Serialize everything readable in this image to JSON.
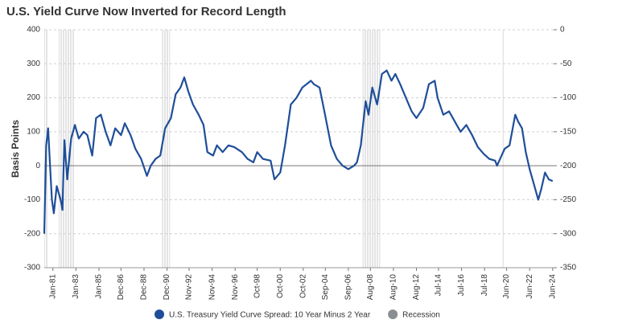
{
  "chart_data": {
    "type": "line",
    "title": "U.S. Yield Curve Now Inverted for Record Length",
    "y_label": "Basis Points",
    "ylim": [
      -300,
      400
    ],
    "yticks": [
      -300,
      -200,
      -100,
      0,
      100,
      200,
      300,
      400
    ],
    "y2lim": [
      -350,
      0
    ],
    "y2ticks": [
      -350,
      -300,
      -250,
      -200,
      -150,
      -100,
      -50,
      0
    ],
    "xlim": [
      "1980-04",
      "2024-07"
    ],
    "xticks": [
      {
        "value": "1981-01",
        "label": "Jan-81"
      },
      {
        "value": "1983-01",
        "label": "Jan-83"
      },
      {
        "value": "1985-01",
        "label": "Jan-85"
      },
      {
        "value": "1986-12",
        "label": "Dec-86"
      },
      {
        "value": "1988-12",
        "label": "Dec-88"
      },
      {
        "value": "1990-12",
        "label": "Dec-90"
      },
      {
        "value": "1992-11",
        "label": "Nov-92"
      },
      {
        "value": "1994-11",
        "label": "Nov-94"
      },
      {
        "value": "1996-11",
        "label": "Nov-96"
      },
      {
        "value": "1998-10",
        "label": "Oct-98"
      },
      {
        "value": "2000-10",
        "label": "Oct-00"
      },
      {
        "value": "2002-10",
        "label": "Oct-02"
      },
      {
        "value": "2004-09",
        "label": "Sep-04"
      },
      {
        "value": "2006-09",
        "label": "Sep-06"
      },
      {
        "value": "2008-08",
        "label": "Aug-08"
      },
      {
        "value": "2010-08",
        "label": "Aug-10"
      },
      {
        "value": "2012-08",
        "label": "Aug-12"
      },
      {
        "value": "2014-07",
        "label": "Jul-14"
      },
      {
        "value": "2016-07",
        "label": "Jul-16"
      },
      {
        "value": "2018-07",
        "label": "Jul-18"
      },
      {
        "value": "2020-06",
        "label": "Jun-20"
      },
      {
        "value": "2022-06",
        "label": "Jun-22"
      },
      {
        "value": "2024-06",
        "label": "Jun-24"
      }
    ],
    "grid": true,
    "x": [
      "1980-04",
      "1980-06",
      "1980-08",
      "1980-10",
      "1980-12",
      "1981-02",
      "1981-05",
      "1981-09",
      "1981-11",
      "1982-01",
      "1982-04",
      "1982-08",
      "1982-12",
      "1983-04",
      "1983-09",
      "1984-01",
      "1984-06",
      "1984-10",
      "1985-03",
      "1985-08",
      "1986-01",
      "1986-06",
      "1986-12",
      "1987-04",
      "1987-10",
      "1988-03",
      "1988-09",
      "1989-03",
      "1989-07",
      "1989-12",
      "1990-05",
      "1990-10",
      "1991-04",
      "1991-09",
      "1992-02",
      "1992-06",
      "1992-10",
      "1993-03",
      "1993-09",
      "1994-02",
      "1994-06",
      "1994-12",
      "1995-04",
      "1995-10",
      "1996-04",
      "1996-10",
      "1997-06",
      "1997-12",
      "1998-06",
      "1998-10",
      "1999-04",
      "1999-12",
      "2000-04",
      "2000-10",
      "2001-03",
      "2001-09",
      "2002-03",
      "2002-09",
      "2003-06",
      "2003-09",
      "2004-03",
      "2004-08",
      "2005-03",
      "2005-09",
      "2006-03",
      "2006-09",
      "2007-03",
      "2007-06",
      "2007-10",
      "2008-03",
      "2008-06",
      "2008-10",
      "2009-03",
      "2009-08",
      "2010-01",
      "2010-06",
      "2010-10",
      "2011-03",
      "2011-09",
      "2012-03",
      "2012-08",
      "2013-03",
      "2013-09",
      "2014-03",
      "2014-06",
      "2014-12",
      "2015-06",
      "2015-12",
      "2016-06",
      "2016-12",
      "2017-06",
      "2017-12",
      "2018-06",
      "2018-12",
      "2019-06",
      "2019-08",
      "2019-12",
      "2020-04",
      "2020-09",
      "2021-03",
      "2021-06",
      "2021-10",
      "2022-02",
      "2022-06",
      "2022-10",
      "2023-03",
      "2023-06",
      "2023-10",
      "2024-02",
      "2024-06"
    ],
    "series": [
      {
        "name": "U.S. Treasury Yield Curve Spread: 10 Year Minus 2 Year",
        "color": "#1f4e99",
        "values": [
          -200,
          60,
          110,
          0,
          -100,
          -140,
          -60,
          -100,
          -130,
          75,
          -40,
          80,
          120,
          80,
          100,
          90,
          30,
          140,
          150,
          100,
          60,
          110,
          90,
          125,
          90,
          50,
          20,
          -30,
          0,
          20,
          30,
          110,
          140,
          210,
          230,
          260,
          220,
          180,
          150,
          120,
          40,
          30,
          60,
          40,
          60,
          55,
          40,
          20,
          10,
          40,
          20,
          15,
          -40,
          -20,
          60,
          180,
          200,
          230,
          250,
          240,
          230,
          160,
          60,
          20,
          0,
          -10,
          0,
          10,
          60,
          190,
          150,
          230,
          180,
          270,
          280,
          250,
          270,
          240,
          200,
          160,
          140,
          170,
          240,
          250,
          200,
          150,
          160,
          130,
          100,
          120,
          90,
          55,
          35,
          20,
          15,
          0,
          25,
          50,
          60,
          150,
          130,
          110,
          40,
          -10,
          -50,
          -100,
          -70,
          -20,
          -40,
          -45
        ]
      }
    ],
    "recession": {
      "name": "Recession",
      "color": "#8a8d91",
      "periods": [
        [
          "1980-01",
          "1980-07"
        ],
        [
          "1981-07",
          "1982-11"
        ],
        [
          "1990-07",
          "1991-03"
        ],
        [
          "2007-12",
          "2009-06"
        ],
        [
          "2020-02",
          "2020-04"
        ]
      ]
    }
  }
}
